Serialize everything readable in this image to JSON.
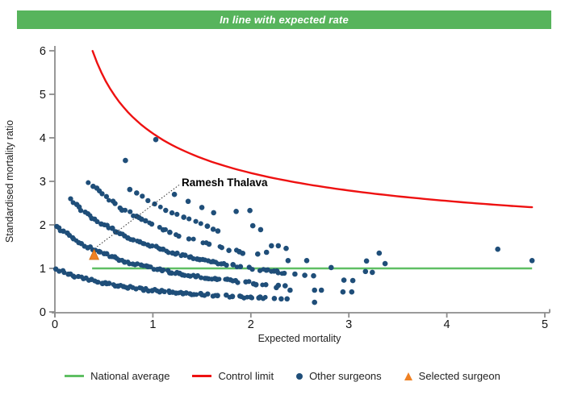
{
  "banner": {
    "text": "In line with expected rate",
    "bg": "#57b45c"
  },
  "chart_data": {
    "type": "scatter",
    "title": "In line with expected rate",
    "xlabel": "Expected mortality",
    "ylabel": "Standardised mortality ratio",
    "xlim": [
      0,
      5
    ],
    "ylim": [
      0,
      6
    ],
    "grid": false,
    "legend_position": "bottom",
    "x_ticks": [
      0,
      1,
      2,
      3,
      4,
      5
    ],
    "y_ticks": [
      0,
      1,
      2,
      3,
      4,
      5,
      6
    ],
    "national_average": {
      "y": 1,
      "x_start": 0.38,
      "x_end": 4.87,
      "color": "#5fbf63"
    },
    "control_limit": {
      "formula": "y = 1 + 3.1/sqrt(x)",
      "a": 3.1,
      "x_start": 0.385,
      "x_end": 4.87,
      "color": "#ee1111"
    },
    "selected_surgeon": {
      "name": "Ramesh Thalava",
      "x": 0.4,
      "y": 1.3,
      "color": "#ef8123"
    },
    "annotation": {
      "text": "Ramesh Thalava",
      "line_from": [
        0.43,
        1.5
      ],
      "line_to": [
        1.268,
        2.916
      ],
      "text_pos": [
        1.29,
        2.92
      ]
    },
    "other_surgeons": {
      "color": "#1f4e79",
      "curve_formula": "y = k/(x+1)",
      "dense_curves": [
        {
          "k": 1,
          "x_start": 0.02,
          "x_end": 2.18,
          "step": 0.027,
          "gap_from": 1.55
        },
        {
          "k": 2,
          "x_start": 0.01,
          "x_end": 2.21,
          "step": 0.027,
          "gap_from": 1.65
        },
        {
          "k": 3,
          "x_start": 0.16,
          "x_end": 2.36,
          "step": 0.028,
          "gap_from": 1.75
        },
        {
          "k": 4,
          "x_start": 0.35,
          "x_end": 1.97,
          "step": 0.034,
          "gap_from": 0.95
        },
        {
          "k": 5,
          "x_start": 0.77,
          "x_end": 1.72,
          "step": 0.06
        }
      ],
      "sparse_points": [
        [
          0.72,
          3.48
        ],
        [
          1.03,
          3.96
        ],
        [
          1.22,
          2.7
        ],
        [
          1.36,
          2.54
        ],
        [
          1.5,
          2.4
        ],
        [
          1.62,
          2.28
        ],
        [
          1.85,
          2.31
        ],
        [
          1.99,
          2.33
        ],
        [
          2.02,
          1.98
        ],
        [
          2.1,
          1.89
        ],
        [
          2.07,
          1.33
        ],
        [
          2.16,
          1.37
        ],
        [
          2.21,
          1.52
        ],
        [
          2.28,
          1.52
        ],
        [
          2.36,
          1.46
        ],
        [
          2.38,
          1.18
        ],
        [
          2.57,
          1.18
        ],
        [
          2.82,
          1.02
        ],
        [
          2.45,
          0.87
        ],
        [
          2.55,
          0.84
        ],
        [
          2.64,
          0.83
        ],
        [
          2.26,
          0.56
        ],
        [
          2.4,
          0.5
        ],
        [
          2.65,
          0.5
        ],
        [
          2.72,
          0.5
        ],
        [
          2.65,
          0.22
        ],
        [
          2.24,
          0.31
        ],
        [
          2.31,
          0.3
        ],
        [
          2.37,
          0.3
        ],
        [
          2.28,
          0.61
        ],
        [
          2.35,
          0.6
        ],
        [
          2.95,
          0.73
        ],
        [
          3.04,
          0.72
        ],
        [
          2.94,
          0.46
        ],
        [
          3.03,
          0.46
        ],
        [
          3.17,
          0.93
        ],
        [
          3.24,
          0.91
        ],
        [
          3.18,
          1.17
        ],
        [
          3.37,
          1.11
        ],
        [
          3.31,
          1.35
        ],
        [
          4.52,
          1.44
        ],
        [
          4.87,
          1.18
        ]
      ]
    }
  },
  "legend": {
    "items": [
      {
        "label": "National average",
        "type": "line",
        "color": "#5fbf63"
      },
      {
        "label": "Control limit",
        "type": "line",
        "color": "#ee1111"
      },
      {
        "label": "Other surgeons",
        "type": "dot",
        "color": "#1f4e79"
      },
      {
        "label": "Selected surgeon",
        "type": "triangle",
        "color": "#ef8123"
      }
    ]
  }
}
